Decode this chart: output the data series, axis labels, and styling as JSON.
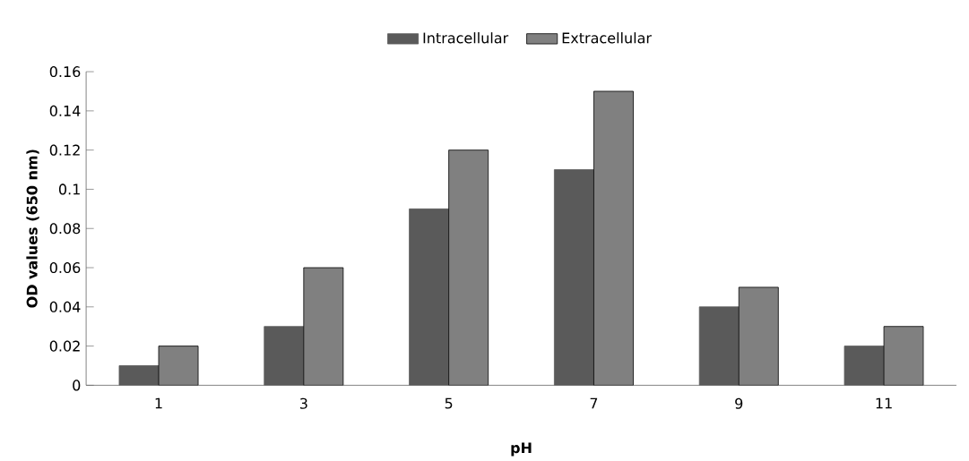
{
  "chart_data": {
    "type": "bar",
    "xlabel": "pH",
    "ylabel": "OD  values  (650 nm)",
    "categories": [
      "1",
      "3",
      "5",
      "7",
      "9",
      "11"
    ],
    "series": [
      {
        "name": "Intracellular",
        "color": "#5a5a5a",
        "values": [
          0.01,
          0.03,
          0.09,
          0.11,
          0.04,
          0.02
        ]
      },
      {
        "name": "Extracellular",
        "color": "#808080",
        "values": [
          0.02,
          0.06,
          0.12,
          0.15,
          0.05,
          0.03
        ]
      }
    ],
    "ylim": [
      0,
      0.16
    ],
    "yticks": [
      0,
      0.02,
      0.04,
      0.06,
      0.08,
      0.1,
      0.12,
      0.14,
      0.16
    ],
    "legend": "top",
    "grid": false
  }
}
